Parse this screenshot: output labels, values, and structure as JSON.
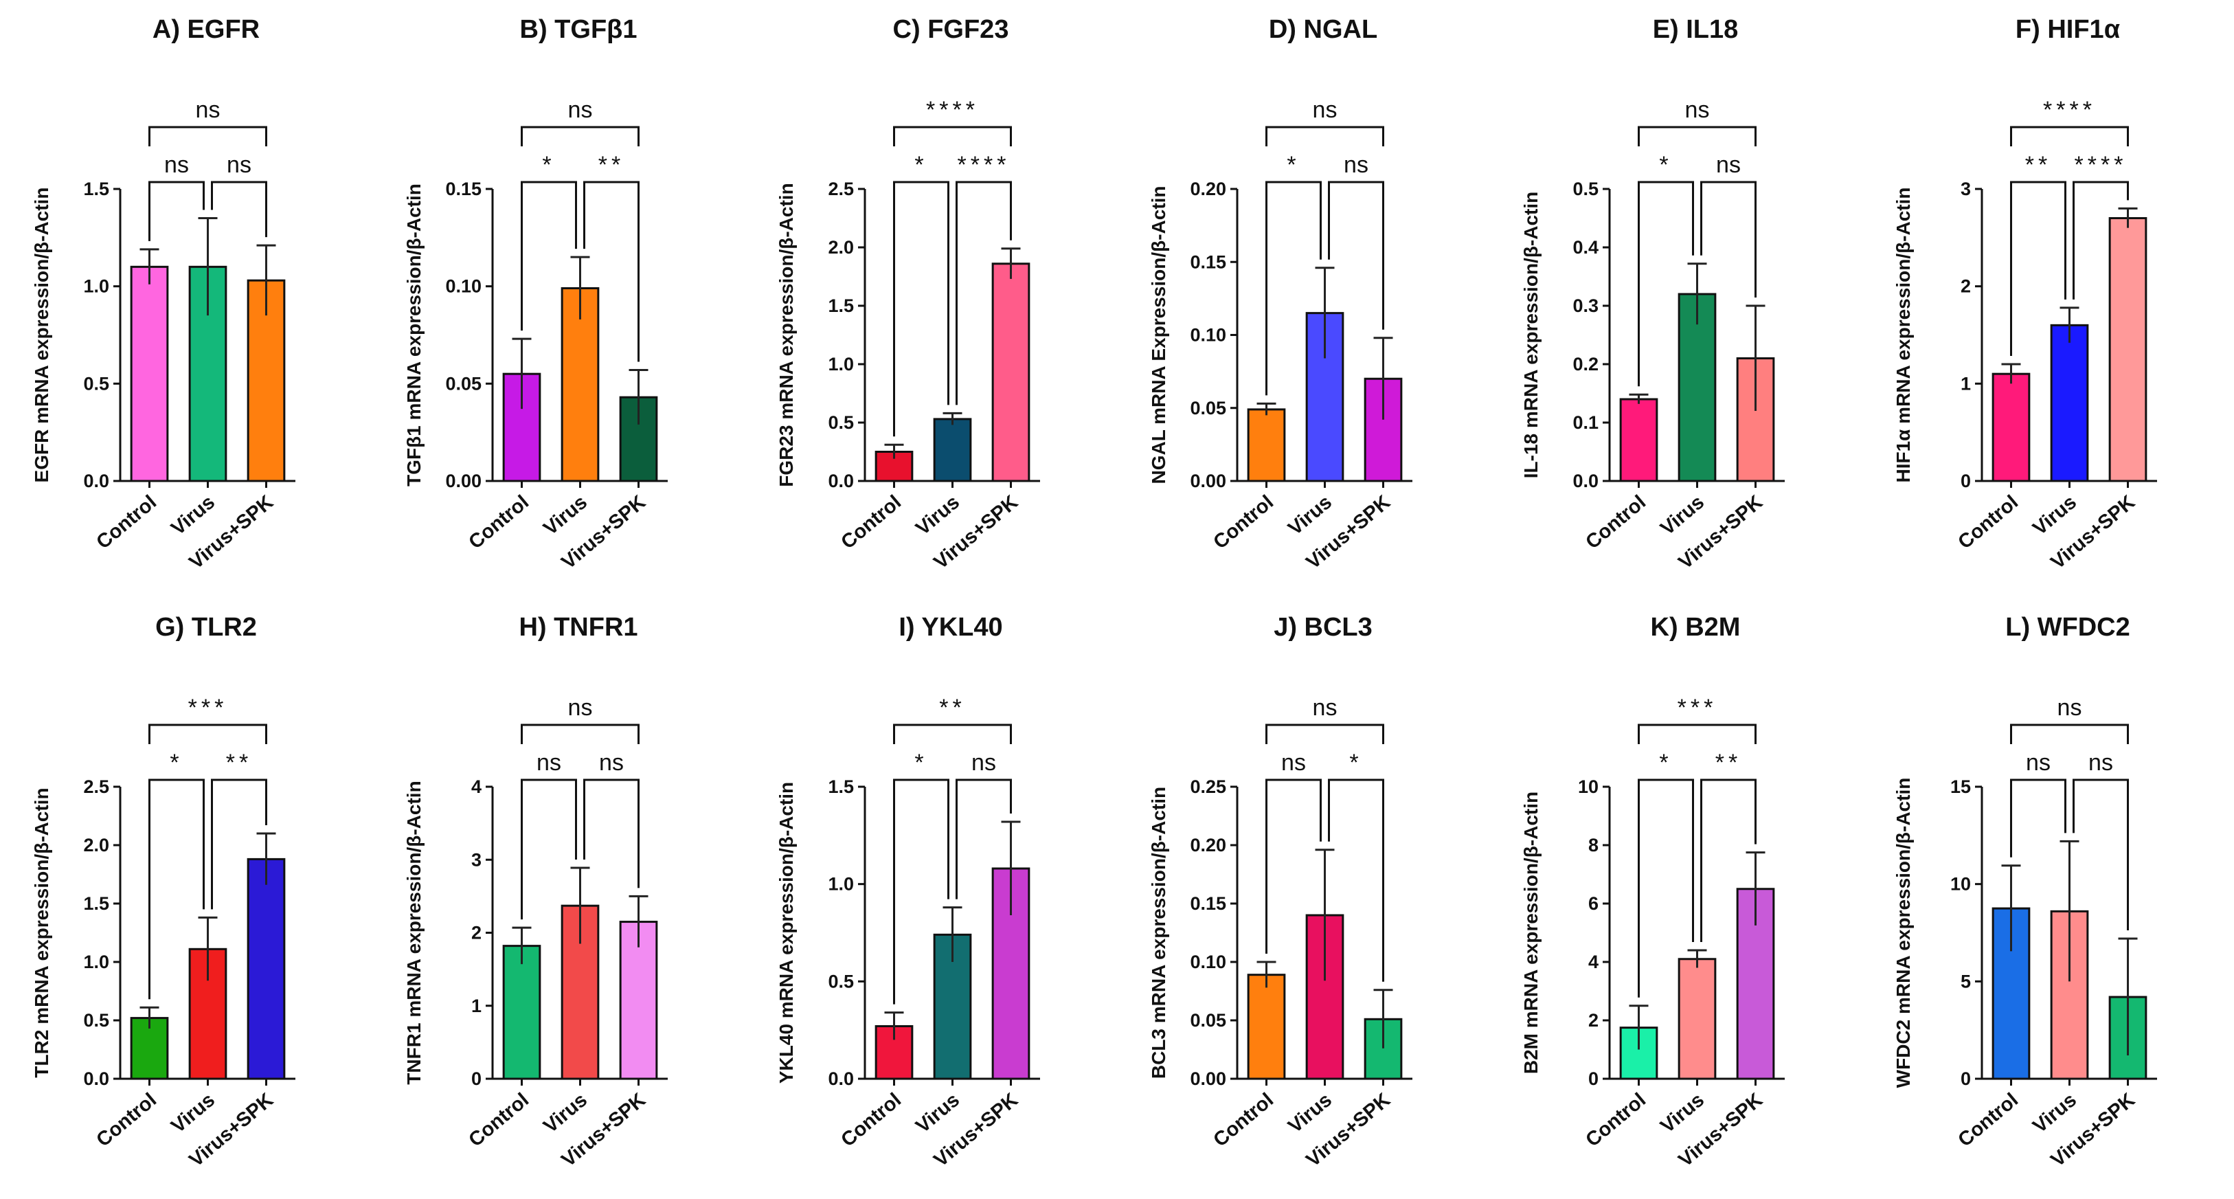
{
  "chart_data": [
    {
      "type": "bar",
      "title": "A) EGFR",
      "ylabel": "EGFR mRNA expression/β-Actin",
      "categories": [
        "Control",
        "Virus",
        "Virus+SPK"
      ],
      "values": [
        1.1,
        1.1,
        1.03
      ],
      "errors": [
        0.09,
        0.25,
        0.18
      ],
      "colors": [
        "#ff66e0",
        "#14b87a",
        "#ff7f0e"
      ],
      "ylim": [
        0,
        1.5
      ],
      "yticks": [
        "0.0",
        "0.5",
        "1.0",
        "1.5"
      ],
      "brackets": [
        {
          "from": 0,
          "to": 1,
          "label": "ns"
        },
        {
          "from": 1,
          "to": 2,
          "label": "ns"
        },
        {
          "from": 0,
          "to": 2,
          "label": "ns"
        }
      ]
    },
    {
      "type": "bar",
      "title": "B) TGFβ1",
      "ylabel": "TGFβ1 mRNA expression/β-Actin",
      "categories": [
        "Control",
        "Virus",
        "Virus+SPK"
      ],
      "values": [
        0.055,
        0.099,
        0.043
      ],
      "errors": [
        0.018,
        0.016,
        0.014
      ],
      "colors": [
        "#c61ae6",
        "#ff7f0e",
        "#0b5e3c"
      ],
      "ylim": [
        0,
        0.15
      ],
      "yticks": [
        "0.00",
        "0.05",
        "0.10",
        "0.15"
      ],
      "brackets": [
        {
          "from": 0,
          "to": 1,
          "label": "*"
        },
        {
          "from": 1,
          "to": 2,
          "label": "**"
        },
        {
          "from": 0,
          "to": 2,
          "label": "ns"
        }
      ]
    },
    {
      "type": "bar",
      "title": "C) FGF23",
      "ylabel": "FGR23 mRNA expression/β-Actin",
      "categories": [
        "Control",
        "Virus",
        "Virus+SPK"
      ],
      "values": [
        0.25,
        0.53,
        1.86
      ],
      "errors": [
        0.06,
        0.05,
        0.13
      ],
      "colors": [
        "#e8112d",
        "#0b4d6e",
        "#ff5c8a"
      ],
      "ylim": [
        0,
        2.5
      ],
      "yticks": [
        "0.0",
        "0.5",
        "1.0",
        "1.5",
        "2.0",
        "2.5"
      ],
      "brackets": [
        {
          "from": 0,
          "to": 1,
          "label": "*"
        },
        {
          "from": 1,
          "to": 2,
          "label": "****"
        },
        {
          "from": 0,
          "to": 2,
          "label": "****"
        }
      ]
    },
    {
      "type": "bar",
      "title": "D) NGAL",
      "ylabel": "NGAL mRNA Expression/β-Actin",
      "categories": [
        "Control",
        "Virus",
        "Virus+SPK"
      ],
      "values": [
        0.049,
        0.115,
        0.07
      ],
      "errors": [
        0.004,
        0.031,
        0.028
      ],
      "colors": [
        "#ff7f0e",
        "#4a4aff",
        "#cf1ad8"
      ],
      "ylim": [
        0,
        0.2
      ],
      "yticks": [
        "0.00",
        "0.05",
        "0.10",
        "0.15",
        "0.20"
      ],
      "brackets": [
        {
          "from": 0,
          "to": 1,
          "label": "*"
        },
        {
          "from": 1,
          "to": 2,
          "label": "ns"
        },
        {
          "from": 0,
          "to": 2,
          "label": "ns"
        }
      ]
    },
    {
      "type": "bar",
      "title": "E) IL18",
      "ylabel": "IL-18 mRNA expression/β-Actin",
      "categories": [
        "Control",
        "Virus",
        "Virus+SPK"
      ],
      "values": [
        0.14,
        0.32,
        0.21
      ],
      "errors": [
        0.008,
        0.052,
        0.09
      ],
      "colors": [
        "#ff1a7a",
        "#148a55",
        "#ff7f7f"
      ],
      "ylim": [
        0,
        0.5
      ],
      "yticks": [
        "0.0",
        "0.1",
        "0.2",
        "0.3",
        "0.4",
        "0.5"
      ],
      "brackets": [
        {
          "from": 0,
          "to": 1,
          "label": "*"
        },
        {
          "from": 1,
          "to": 2,
          "label": "ns"
        },
        {
          "from": 0,
          "to": 2,
          "label": "ns"
        }
      ]
    },
    {
      "type": "bar",
      "title": "F) HIF1α",
      "ylabel": "HIF1α mRNA expression/β-Actin",
      "categories": [
        "Control",
        "Virus",
        "Virus+SPK"
      ],
      "values": [
        1.1,
        1.6,
        2.7
      ],
      "errors": [
        0.1,
        0.18,
        0.1
      ],
      "colors": [
        "#ff1a7a",
        "#1a1aff",
        "#ff9999"
      ],
      "ylim": [
        0,
        3
      ],
      "yticks": [
        "0",
        "1",
        "2",
        "3"
      ],
      "brackets": [
        {
          "from": 0,
          "to": 1,
          "label": "**"
        },
        {
          "from": 1,
          "to": 2,
          "label": "****"
        },
        {
          "from": 0,
          "to": 2,
          "label": "****"
        }
      ]
    },
    {
      "type": "bar",
      "title": "G) TLR2",
      "ylabel": "TLR2 mRNA expression/β-Actin",
      "categories": [
        "Control",
        "Virus",
        "Virus+SPK"
      ],
      "values": [
        0.52,
        1.11,
        1.88
      ],
      "errors": [
        0.09,
        0.27,
        0.22
      ],
      "colors": [
        "#1aa80f",
        "#f01e1e",
        "#2b1ad6"
      ],
      "ylim": [
        0,
        2.5
      ],
      "yticks": [
        "0.0",
        "0.5",
        "1.0",
        "1.5",
        "2.0",
        "2.5"
      ],
      "brackets": [
        {
          "from": 0,
          "to": 1,
          "label": "*"
        },
        {
          "from": 1,
          "to": 2,
          "label": "**"
        },
        {
          "from": 0,
          "to": 2,
          "label": "***"
        }
      ]
    },
    {
      "type": "bar",
      "title": "H) TNFR1",
      "ylabel": "TNFR1 mRNA expression/β-Actin",
      "categories": [
        "Control",
        "Virus",
        "Virus+SPK"
      ],
      "values": [
        1.82,
        2.37,
        2.15
      ],
      "errors": [
        0.25,
        0.52,
        0.35
      ],
      "colors": [
        "#14b870",
        "#f24a4a",
        "#f28cf2"
      ],
      "ylim": [
        0,
        4
      ],
      "yticks": [
        "0",
        "1",
        "2",
        "3",
        "4"
      ],
      "brackets": [
        {
          "from": 0,
          "to": 1,
          "label": "ns"
        },
        {
          "from": 1,
          "to": 2,
          "label": "ns"
        },
        {
          "from": 0,
          "to": 2,
          "label": "ns"
        }
      ]
    },
    {
      "type": "bar",
      "title": "I) YKL40",
      "ylabel": "YKL40 mRNA expression/β-Actin",
      "categories": [
        "Control",
        "Virus",
        "Virus+SPK"
      ],
      "values": [
        0.27,
        0.74,
        1.08
      ],
      "errors": [
        0.07,
        0.14,
        0.24
      ],
      "colors": [
        "#f0163c",
        "#126e70",
        "#c93cd0"
      ],
      "ylim": [
        0,
        1.5
      ],
      "yticks": [
        "0.0",
        "0.5",
        "1.0",
        "1.5"
      ],
      "brackets": [
        {
          "from": 0,
          "to": 1,
          "label": "*"
        },
        {
          "from": 1,
          "to": 2,
          "label": "ns"
        },
        {
          "from": 0,
          "to": 2,
          "label": "**"
        }
      ]
    },
    {
      "type": "bar",
      "title": "J) BCL3",
      "ylabel": "BCL3 mRNA expression/β-Actin",
      "categories": [
        "Control",
        "Virus",
        "Virus+SPK"
      ],
      "values": [
        0.089,
        0.14,
        0.051
      ],
      "errors": [
        0.011,
        0.056,
        0.025
      ],
      "colors": [
        "#ff7f0e",
        "#e8105f",
        "#14b870"
      ],
      "ylim": [
        0,
        0.25
      ],
      "yticks": [
        "0.00",
        "0.05",
        "0.10",
        "0.15",
        "0.20",
        "0.25"
      ],
      "brackets": [
        {
          "from": 0,
          "to": 1,
          "label": "ns"
        },
        {
          "from": 1,
          "to": 2,
          "label": "*"
        },
        {
          "from": 0,
          "to": 2,
          "label": "ns"
        }
      ]
    },
    {
      "type": "bar",
      "title": "K) B2M",
      "ylabel": "B2M mRNA expression/β-Actin",
      "categories": [
        "Control",
        "Virus",
        "Virus+SPK"
      ],
      "values": [
        1.75,
        4.1,
        6.5
      ],
      "errors": [
        0.75,
        0.3,
        1.25
      ],
      "colors": [
        "#1af0a8",
        "#ff8c8c",
        "#c85ad8"
      ],
      "ylim": [
        0,
        10
      ],
      "yticks": [
        "0",
        "2",
        "4",
        "6",
        "8",
        "10"
      ],
      "brackets": [
        {
          "from": 0,
          "to": 1,
          "label": "*"
        },
        {
          "from": 1,
          "to": 2,
          "label": "**"
        },
        {
          "from": 0,
          "to": 2,
          "label": "***"
        }
      ]
    },
    {
      "type": "bar",
      "title": "L) WFDC2",
      "ylabel": "WFDC2 mRNA expression/β-Actin",
      "categories": [
        "Control",
        "Virus",
        "Virus+SPK"
      ],
      "values": [
        8.75,
        8.6,
        4.2
      ],
      "errors": [
        2.2,
        3.6,
        3.0
      ],
      "colors": [
        "#1a6ee6",
        "#ff8c8c",
        "#14b870"
      ],
      "ylim": [
        0,
        15
      ],
      "yticks": [
        "0",
        "5",
        "10",
        "15"
      ],
      "brackets": [
        {
          "from": 0,
          "to": 1,
          "label": "ns"
        },
        {
          "from": 1,
          "to": 2,
          "label": "ns"
        },
        {
          "from": 0,
          "to": 2,
          "label": "ns"
        }
      ]
    }
  ]
}
